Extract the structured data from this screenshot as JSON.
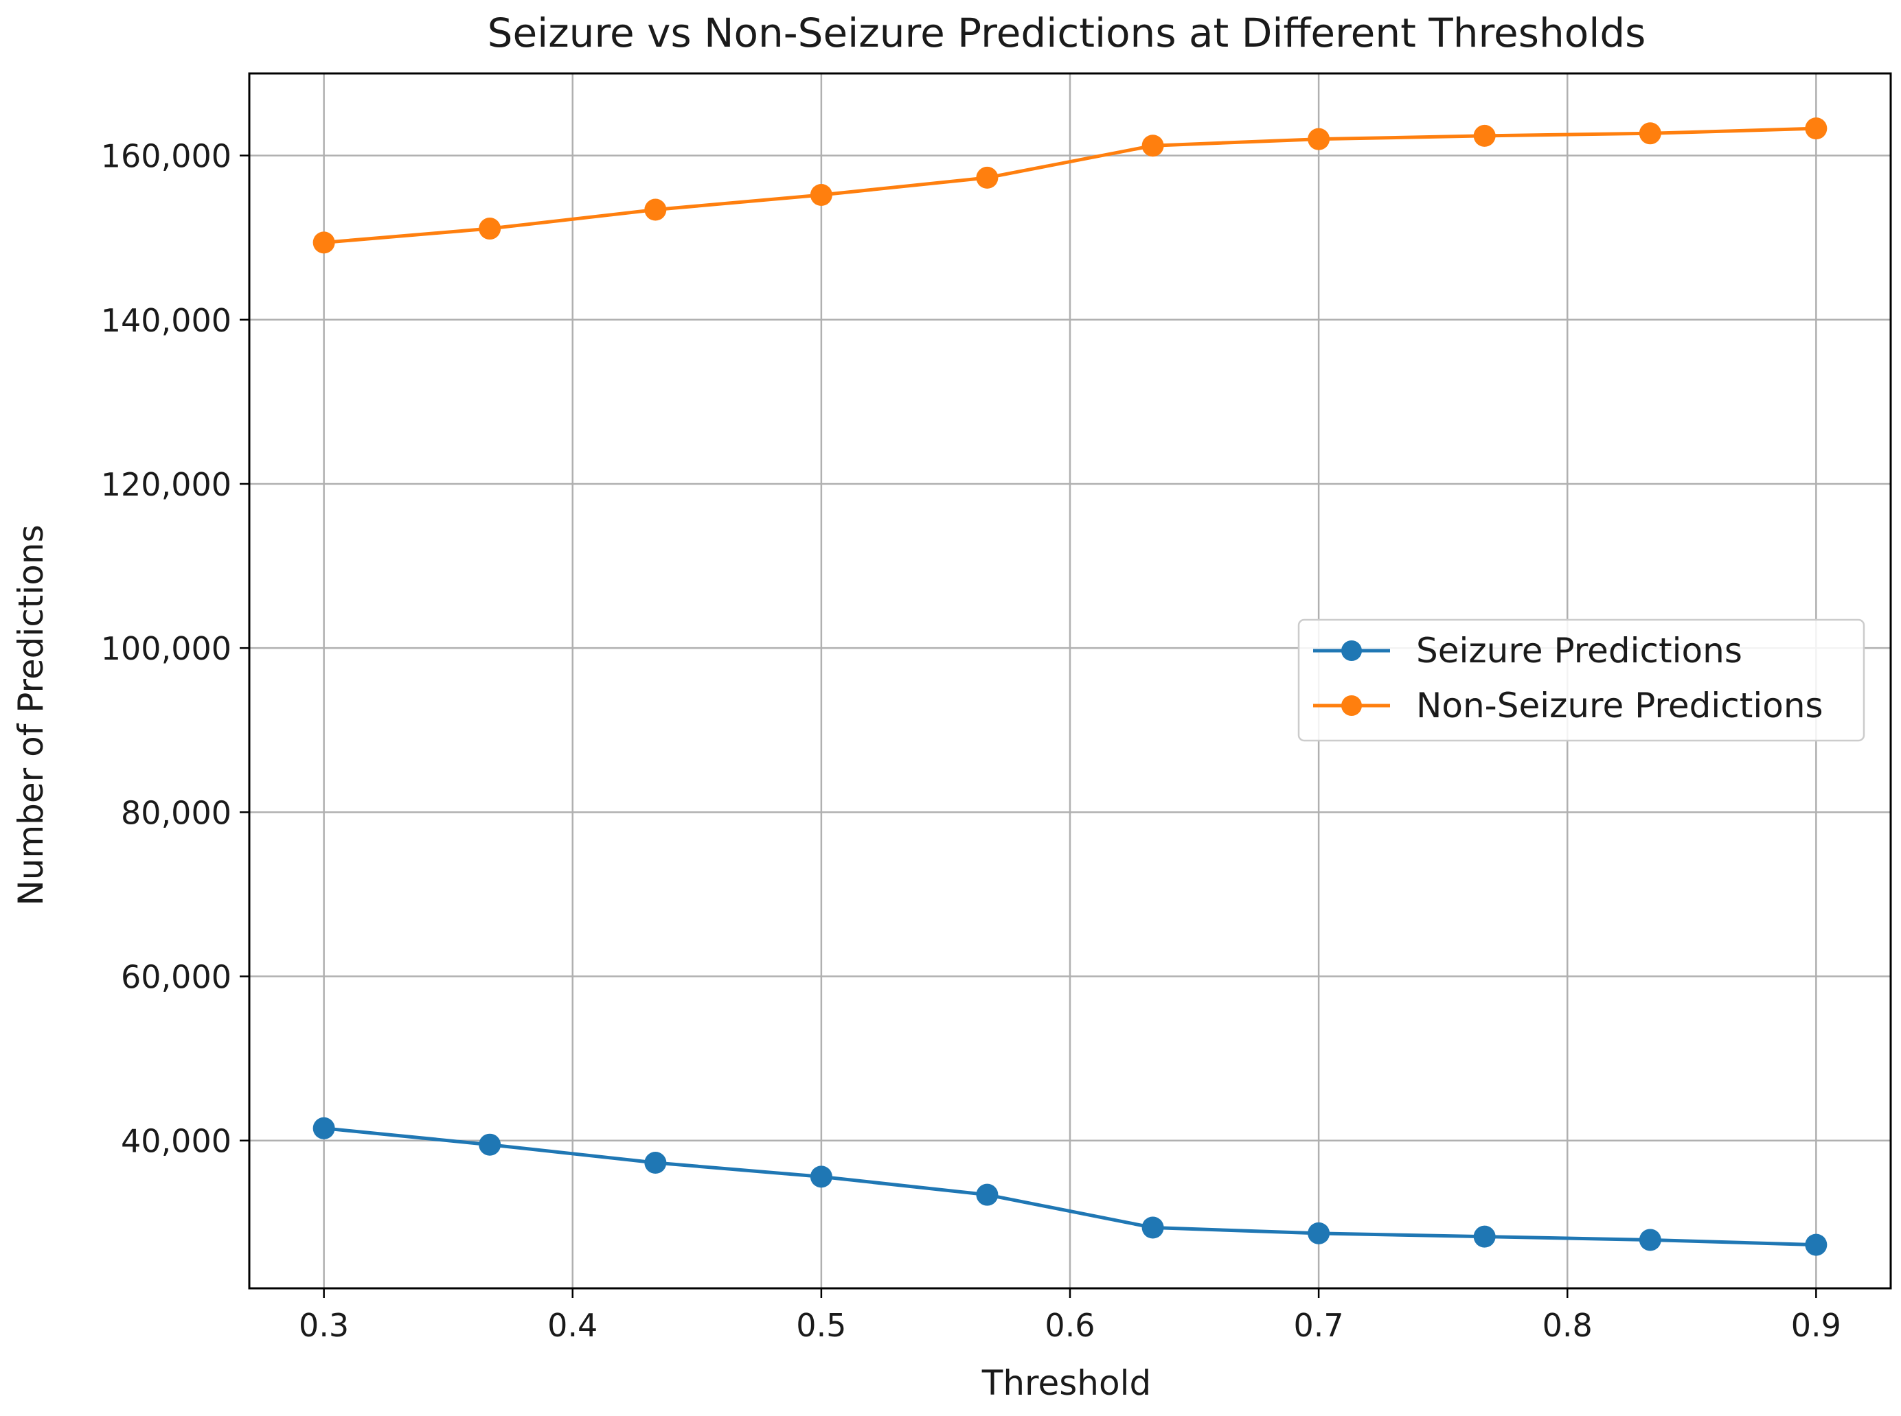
{
  "chart_data": {
    "type": "line",
    "title": "Seizure vs Non-Seizure Predictions at Different Thresholds",
    "xlabel": "Threshold",
    "ylabel": "Number of Predictions",
    "x": [
      0.3,
      0.3667,
      0.4333,
      0.5,
      0.5667,
      0.6333,
      0.7,
      0.7667,
      0.8333,
      0.9
    ],
    "xlim": [
      0.27,
      0.93
    ],
    "ylim": [
      22000,
      170000
    ],
    "xticks": [
      0.3,
      0.4,
      0.5,
      0.6,
      0.7,
      0.8,
      0.9
    ],
    "xtick_labels": [
      "0.3",
      "0.4",
      "0.5",
      "0.6",
      "0.7",
      "0.8",
      "0.9"
    ],
    "yticks": [
      40000,
      60000,
      80000,
      100000,
      120000,
      140000,
      160000
    ],
    "ytick_labels": [
      "40,000",
      "60,000",
      "80,000",
      "100,000",
      "120,000",
      "140,000",
      "160,000"
    ],
    "grid": true,
    "legend_position": "center-right",
    "series": [
      {
        "name": "Seizure Predictions",
        "color": "#1f77b4",
        "values": [
          41500,
          39500,
          37300,
          35600,
          33400,
          29400,
          28700,
          28300,
          27900,
          27300
        ]
      },
      {
        "name": "Non-Seizure Predictions",
        "color": "#ff7f0e",
        "values": [
          149400,
          151100,
          153400,
          155200,
          157300,
          161200,
          162000,
          162400,
          162700,
          163300
        ]
      }
    ]
  }
}
